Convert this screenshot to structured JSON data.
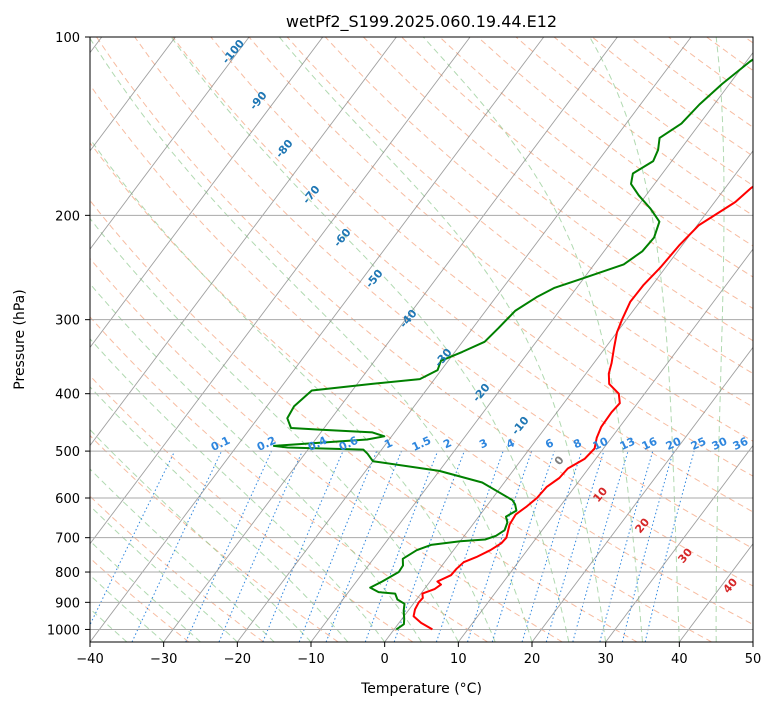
{
  "chart_data": {
    "type": "line",
    "title": "wetPf2_S199.2025.060.19.44.E12",
    "xlabel": "Temperature (°C)",
    "ylabel": "Pressure (hPa)",
    "xlim": [
      -40,
      50
    ],
    "ylim": [
      1050,
      100
    ],
    "y_scale": "log",
    "x_ticks": [
      -40,
      -30,
      -20,
      -10,
      0,
      10,
      20,
      30,
      40,
      50
    ],
    "y_ticks": [
      100,
      200,
      300,
      400,
      500,
      600,
      700,
      800,
      900,
      1000
    ],
    "grid": true,
    "series": [
      {
        "role": "temperature",
        "color": "#ff0000",
        "points": [
          [
            5.2,
            1000
          ],
          [
            3.0,
            975
          ],
          [
            1.3,
            950
          ],
          [
            0.8,
            925
          ],
          [
            0.6,
            900
          ],
          [
            0.7,
            885
          ],
          [
            0.2,
            870
          ],
          [
            1.4,
            855
          ],
          [
            1.8,
            840
          ],
          [
            1.0,
            830
          ],
          [
            2.2,
            810
          ],
          [
            2.3,
            790
          ],
          [
            2.6,
            770
          ],
          [
            3.8,
            755
          ],
          [
            5.0,
            735
          ],
          [
            5.8,
            715
          ],
          [
            5.9,
            700
          ],
          [
            5.0,
            665
          ],
          [
            4.8,
            640
          ],
          [
            5.5,
            620
          ],
          [
            6.0,
            600
          ],
          [
            6.2,
            575
          ],
          [
            7.0,
            555
          ],
          [
            7.2,
            535
          ],
          [
            8.5,
            515
          ],
          [
            8.8,
            495
          ],
          [
            8.0,
            475
          ],
          [
            7.5,
            455
          ],
          [
            7.4,
            430
          ],
          [
            7.6,
            415
          ],
          [
            6.5,
            400
          ],
          [
            4.2,
            385
          ],
          [
            3.1,
            370
          ],
          [
            2.4,
            355
          ],
          [
            1.2,
            335
          ],
          [
            0.0,
            315
          ],
          [
            -0.6,
            300
          ],
          [
            -1.3,
            280
          ],
          [
            -1.2,
            262
          ],
          [
            -0.7,
            245
          ],
          [
            -0.4,
            225
          ],
          [
            0.2,
            208
          ],
          [
            2.8,
            190
          ],
          [
            3.5,
            180
          ],
          [
            5.0,
            170
          ],
          [
            5.8,
            160
          ],
          [
            7.5,
            150
          ],
          [
            9.5,
            140
          ],
          [
            13.0,
            130
          ],
          [
            15.0,
            121
          ],
          [
            18.0,
            113
          ],
          [
            22.5,
            106
          ],
          [
            25.0,
            100
          ]
        ]
      },
      {
        "role": "dewpoint",
        "color": "#008000",
        "points": [
          [
            0.3,
            1000
          ],
          [
            0.8,
            980
          ],
          [
            0.3,
            960
          ],
          [
            -0.6,
            930
          ],
          [
            -1.2,
            905
          ],
          [
            -2.6,
            890
          ],
          [
            -3.5,
            870
          ],
          [
            -5.9,
            865
          ],
          [
            -7.5,
            850
          ],
          [
            -6.5,
            830
          ],
          [
            -5.2,
            800
          ],
          [
            -5.3,
            780
          ],
          [
            -6.0,
            760
          ],
          [
            -5.0,
            735
          ],
          [
            -3.6,
            720
          ],
          [
            0.0,
            710
          ],
          [
            3.2,
            705
          ],
          [
            4.3,
            695
          ],
          [
            4.9,
            680
          ],
          [
            4.5,
            660
          ],
          [
            3.7,
            645
          ],
          [
            4.5,
            630
          ],
          [
            3.7,
            615
          ],
          [
            2.9,
            605
          ],
          [
            -3.0,
            565
          ],
          [
            -10.0,
            540
          ],
          [
            -20.0,
            520
          ],
          [
            -21.5,
            505
          ],
          [
            -22.5,
            497
          ],
          [
            -33.0,
            493
          ],
          [
            -35.0,
            490
          ],
          [
            -23.0,
            478
          ],
          [
            -21.0,
            472
          ],
          [
            -23.0,
            465
          ],
          [
            -30.5,
            460
          ],
          [
            -34.5,
            457
          ],
          [
            -36.0,
            440
          ],
          [
            -36.3,
            420
          ],
          [
            -35.5,
            395
          ],
          [
            -28.0,
            385
          ],
          [
            -22.0,
            378
          ],
          [
            -20.5,
            365
          ],
          [
            -21.0,
            352
          ],
          [
            -19.0,
            340
          ],
          [
            -17.0,
            327
          ],
          [
            -16.5,
            310
          ],
          [
            -16.0,
            290
          ],
          [
            -14.5,
            275
          ],
          [
            -13.0,
            265
          ],
          [
            -10.0,
            255
          ],
          [
            -6.0,
            242
          ],
          [
            -4.8,
            230
          ],
          [
            -4.6,
            218
          ],
          [
            -5.5,
            205
          ],
          [
            -8.0,
            195
          ],
          [
            -11.0,
            185
          ],
          [
            -13.2,
            177
          ],
          [
            -14.0,
            170
          ],
          [
            -12.5,
            162
          ],
          [
            -13.0,
            155
          ],
          [
            -14.0,
            148
          ],
          [
            -12.5,
            140
          ],
          [
            -12.0,
            130
          ],
          [
            -11.0,
            120
          ],
          [
            -9.5,
            110
          ],
          [
            -7.0,
            100
          ]
        ]
      }
    ],
    "dry_adiabat_labels": [
      -100,
      -90,
      -80,
      -70,
      -60,
      -50,
      -40,
      -30,
      -20,
      -10,
      0,
      10,
      20,
      30,
      40
    ],
    "mixing_ratio_labels": [
      0.1,
      0.2,
      0.4,
      0.6,
      1,
      1.5,
      2,
      3,
      4,
      6,
      8,
      10,
      13,
      16,
      20,
      25,
      30,
      36
    ],
    "colors": {
      "isotherm": "#888888",
      "isobar": "#aaaaaa",
      "dry_adiabat": "#f4a582",
      "moist_adiabat": "#8fc98f",
      "mixing_ratio": "#2e86de",
      "dry_label_cold": "#1f77b4",
      "dry_label_warm": "#d62728",
      "zero_label": "#808080",
      "adiabat_tan": "#d2b48c"
    }
  }
}
